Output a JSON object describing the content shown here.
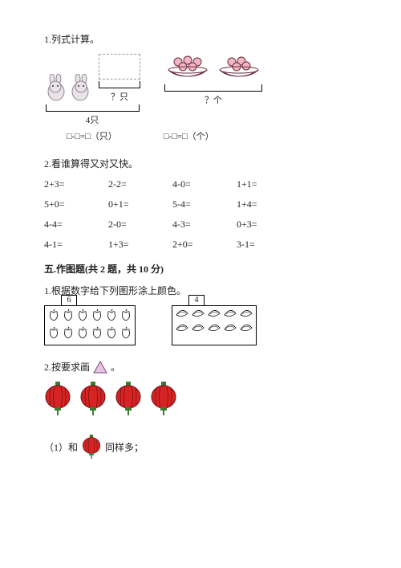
{
  "q1": {
    "title": "1.列式计算。",
    "left": {
      "q_label": "？只",
      "cap": "4只",
      "eq": "□-□=□（只）"
    },
    "right": {
      "cap": "？个",
      "eq": "□-□=□（个）"
    }
  },
  "q2": {
    "title": "2.看谁算得又对又快。",
    "cells": [
      "2+3=",
      "2-2=",
      "4-0=",
      "1+1=",
      "5+0=",
      "0+1=",
      "5-4=",
      "1+4=",
      "4-4=",
      "2-0=",
      "4-3=",
      "0+3=",
      "4-1=",
      "1+3=",
      "2+0=",
      "3-1="
    ]
  },
  "sec5": {
    "header": "五.作图题(共 2 题，共 10 分)",
    "q1": {
      "title": "1.根据数字给下列图形涂上颜色。",
      "boxes": [
        {
          "num": "6",
          "rows": 2,
          "cols": 6,
          "shape": "apple"
        },
        {
          "num": "4",
          "rows": 2,
          "cols": 5,
          "shape": "banana"
        }
      ]
    },
    "q2": {
      "title": "2.按要求画",
      "lantern_count": 4,
      "sub": {
        "prefix": "（1）和",
        "suffix": "同样多；"
      }
    }
  },
  "colors": {
    "rabbit_body": "#e9e3e7",
    "rabbit_line": "#7a7080",
    "fruit": "#f2b7c5",
    "fruit_line": "#6b2a3c",
    "bowl": "#b54a5e",
    "triangle_fill": "#e9c3e3",
    "triangle_line": "#7a4b75",
    "lantern": "#d62424",
    "lantern_line": "#6e0d0d",
    "lantern_stem": "#3d7a2f"
  }
}
